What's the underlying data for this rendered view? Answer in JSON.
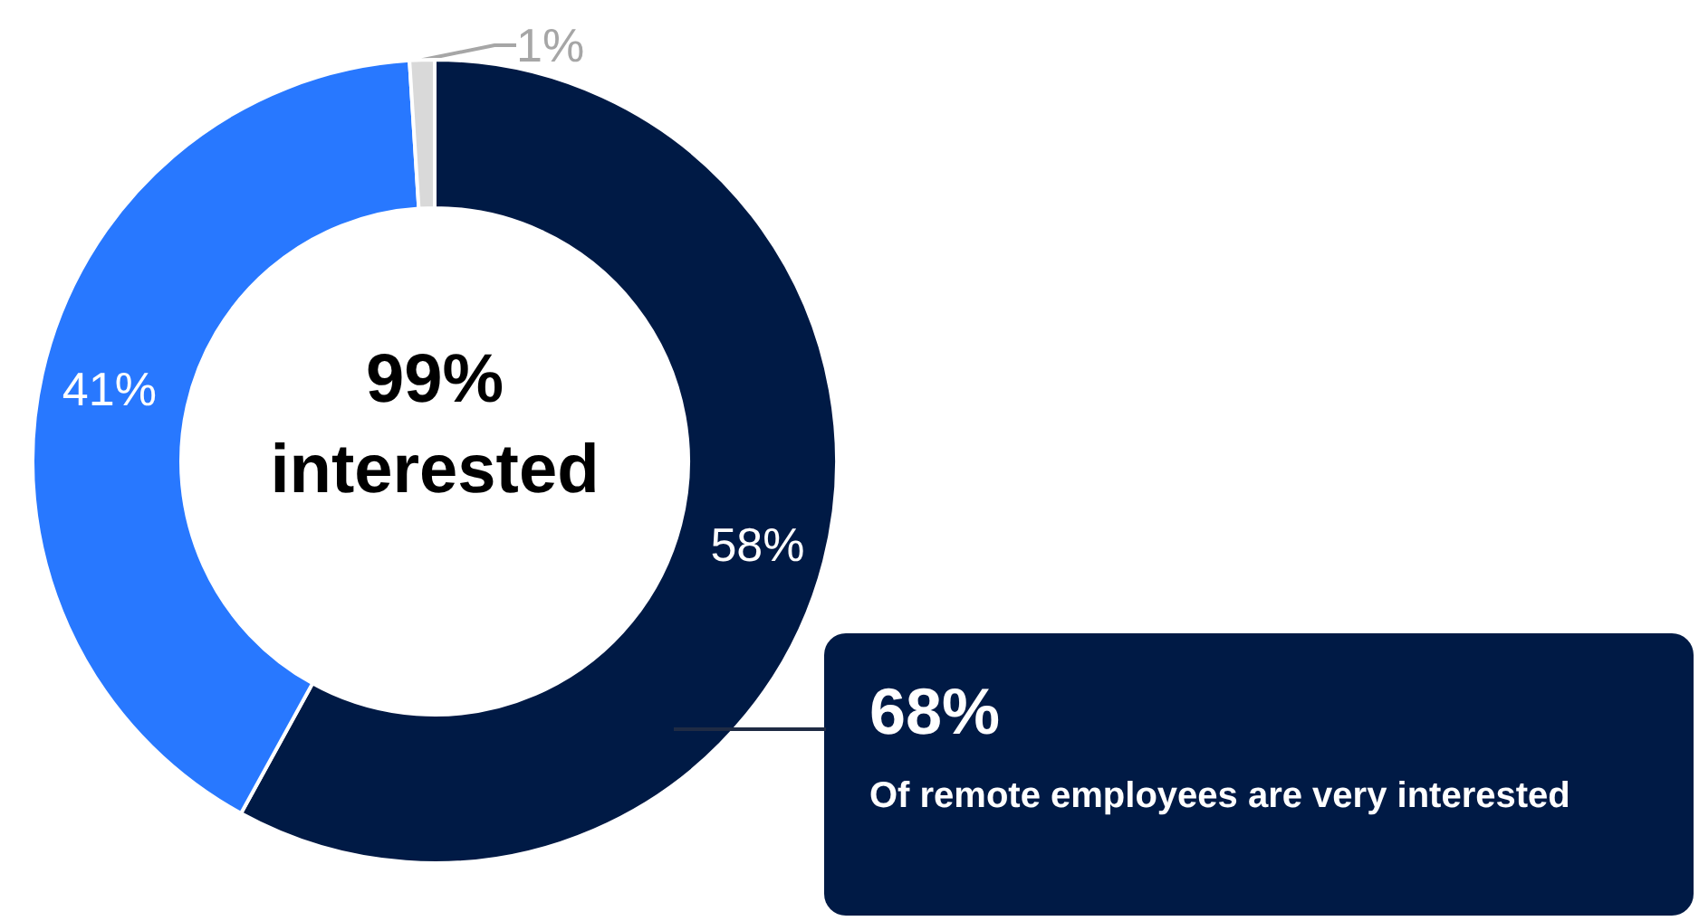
{
  "chart_data": {
    "type": "donut",
    "categories": [
      null,
      null,
      null
    ],
    "values": [
      58,
      41,
      1
    ],
    "colors": [
      "#001a45",
      "#2878ff",
      "#d9d9d9"
    ],
    "value_labels": [
      "58%",
      "41%",
      "1%"
    ],
    "annotations": [
      "99%\ninterested",
      {
        "text": "68%"
      },
      {
        "text": "Of remote employees are very interested"
      }
    ]
  }
}
